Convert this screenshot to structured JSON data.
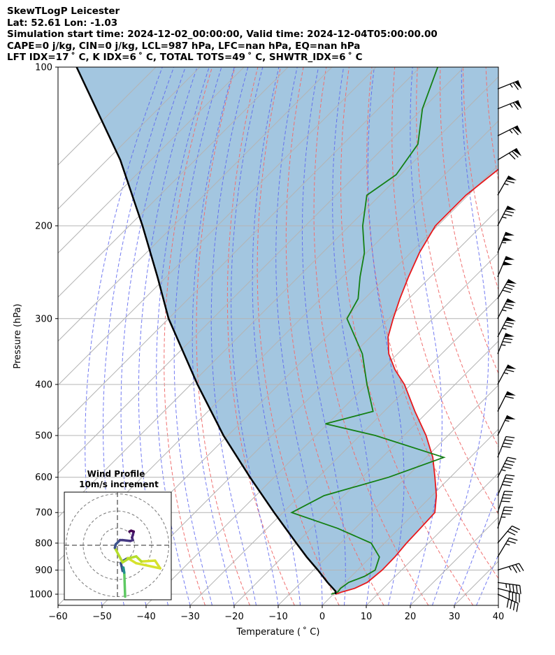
{
  "header": {
    "line1": "SkewTLogP Leicester",
    "line2": "Lat: 52.61   Lon: -1.03",
    "line3": "Simulation start time: 2024-12-02_00:00:00, Valid time: 2024-12-04T05:00:00.00",
    "line4": "CAPE=0 j/kg, CIN=0 j/kg, LCL=987 hPa, LFC=nan hPa, EQ=nan hPa",
    "line5": "LFT IDX=17 ˚ C, K IDX=6 ˚ C, TOTAL TOTS=49 ˚ C, SHWTR_IDX=6 ˚ C"
  },
  "chart_data": {
    "type": "line",
    "title": "SkewTLogP Leicester",
    "xlabel": "Temperature ( ˚ C)",
    "ylabel": "Pressure (hPa)",
    "xlim": [
      -60,
      40
    ],
    "ylim": [
      1050,
      100
    ],
    "x_ticks": [
      -60,
      -50,
      -40,
      -30,
      -20,
      -10,
      0,
      10,
      20,
      30,
      40
    ],
    "x_tick_labels": [
      "−60",
      "−50",
      "−40",
      "−30",
      "−20",
      "−10",
      "0",
      "10",
      "20",
      "30",
      "40"
    ],
    "y_ticks": [
      1000,
      900,
      800,
      700,
      600,
      500,
      400,
      300,
      200,
      100
    ],
    "y_scale": "log",
    "skew": "45-degree isotherms",
    "grid": true,
    "series": [
      {
        "role": "temperature",
        "color": "#e8191c",
        "pressure": [
          1000,
          990,
          975,
          950,
          925,
          900,
          850,
          800,
          750,
          700,
          650,
          600,
          550,
          500,
          450,
          400,
          375,
          350,
          325,
          300,
          275,
          250,
          225,
          200,
          175,
          150,
          140,
          130,
          120,
          110,
          100
        ],
        "temp": [
          0.5,
          1.5,
          3.5,
          5.0,
          5.3,
          5.6,
          5.5,
          5.0,
          4.8,
          4.5,
          1.0,
          -3.5,
          -8.5,
          -15.0,
          -23.0,
          -31.5,
          -37.0,
          -42.0,
          -46.0,
          -49.0,
          -52.0,
          -55.0,
          -58.0,
          -60.5,
          -60.5,
          -58.5,
          -61.0,
          -65.5,
          -69.0,
          -72.0,
          -75.0
        ]
      },
      {
        "role": "dewpoint",
        "color": "#148014",
        "pressure": [
          1000,
          990,
          975,
          950,
          925,
          900,
          850,
          800,
          750,
          700,
          650,
          600,
          550,
          500,
          475,
          450,
          400,
          350,
          300,
          275,
          250,
          225,
          200,
          175,
          160,
          140,
          120,
          100
        ],
        "temp": [
          -0.5,
          0.5,
          0.3,
          0.8,
          3.0,
          4.0,
          2.0,
          -3.0,
          -14.0,
          -28.0,
          -24.5,
          -14.0,
          -6.0,
          -26.5,
          -40.5,
          -32.5,
          -40.0,
          -48.0,
          -59.5,
          -61.5,
          -66.0,
          -70.5,
          -77.0,
          -83.0,
          -81.0,
          -83.0,
          -90.0,
          -96.0
        ]
      },
      {
        "role": "parcel",
        "color": "#000000",
        "pressure": [
          1000,
          987,
          950,
          900,
          850,
          800,
          700,
          600,
          500,
          400,
          300,
          250,
          200,
          150,
          100
        ],
        "temp": [
          0.5,
          -0.2,
          -4.0,
          -9.0,
          -14.5,
          -20.0,
          -32.0,
          -45.5,
          -61.0,
          -78.5,
          -100.0,
          -112.0,
          -127.0,
          -147.0,
          -178.0
        ]
      }
    ],
    "wind_barbs": [
      {
        "p": 1000,
        "u": -18,
        "v": 8
      },
      {
        "p": 975,
        "u": -20,
        "v": 5
      },
      {
        "p": 950,
        "u": -22,
        "v": 3
      },
      {
        "p": 900,
        "u": -16,
        "v": -5
      },
      {
        "p": 850,
        "u": -6,
        "v": -10
      },
      {
        "p": 800,
        "u": -10,
        "v": -12
      },
      {
        "p": 750,
        "u": -5,
        "v": -16
      },
      {
        "p": 700,
        "u": -6,
        "v": -19
      },
      {
        "p": 650,
        "u": -8,
        "v": -20
      },
      {
        "p": 600,
        "u": -10,
        "v": -20
      },
      {
        "p": 550,
        "u": -8,
        "v": -20
      },
      {
        "p": 500,
        "u": -12,
        "v": -25
      },
      {
        "p": 450,
        "u": -14,
        "v": -28
      },
      {
        "p": 400,
        "u": -16,
        "v": -30
      },
      {
        "p": 350,
        "u": -14,
        "v": -35
      },
      {
        "p": 325,
        "u": -18,
        "v": -35
      },
      {
        "p": 300,
        "u": -18,
        "v": -35
      },
      {
        "p": 275,
        "u": -20,
        "v": -35
      },
      {
        "p": 250,
        "u": -20,
        "v": -48
      },
      {
        "p": 225,
        "u": -20,
        "v": -50
      },
      {
        "p": 200,
        "u": -18,
        "v": -35
      },
      {
        "p": 175,
        "u": -16,
        "v": -28
      },
      {
        "p": 150,
        "u": -30,
        "v": -18
      },
      {
        "p": 135,
        "u": -30,
        "v": -15
      },
      {
        "p": 120,
        "u": -30,
        "v": -12
      },
      {
        "p": 110,
        "u": -30,
        "v": -12
      }
    ],
    "hodograph": {
      "title": "Wind Profile",
      "subtitle": "10m/s increment",
      "rings_ms": [
        10,
        20,
        30
      ],
      "points": [
        {
          "u": 3.0,
          "v": -15.0
        },
        {
          "u": 2.5,
          "v": -12.5
        },
        {
          "u": 2.0,
          "v": -10.5
        },
        {
          "u": 3.5,
          "v": -9.0
        },
        {
          "u": 6.0,
          "v": -7.5
        },
        {
          "u": 11.0,
          "v": -10.5
        },
        {
          "u": 25.0,
          "v": -13.5
        },
        {
          "u": 22.0,
          "v": -9.0
        },
        {
          "u": 14.0,
          "v": -9.5
        },
        {
          "u": 11.0,
          "v": -6.5
        },
        {
          "u": 7.0,
          "v": -7.5
        },
        {
          "u": 3.0,
          "v": -10.0
        },
        {
          "u": -1.5,
          "v": -1.5
        },
        {
          "u": -1.0,
          "v": 0.5
        },
        {
          "u": 1.5,
          "v": 3.0
        },
        {
          "u": 3.0,
          "v": 3.0
        },
        {
          "u": 7.5,
          "v": 2.5
        },
        {
          "u": 9.0,
          "v": 3.0
        },
        {
          "u": 8.5,
          "v": 4.5
        },
        {
          "u": 9.0,
          "v": 6.0
        },
        {
          "u": 9.5,
          "v": 8.0
        },
        {
          "u": 8.0,
          "v": 8.5
        },
        {
          "u": 7.0,
          "v": 8.0
        }
      ]
    }
  }
}
